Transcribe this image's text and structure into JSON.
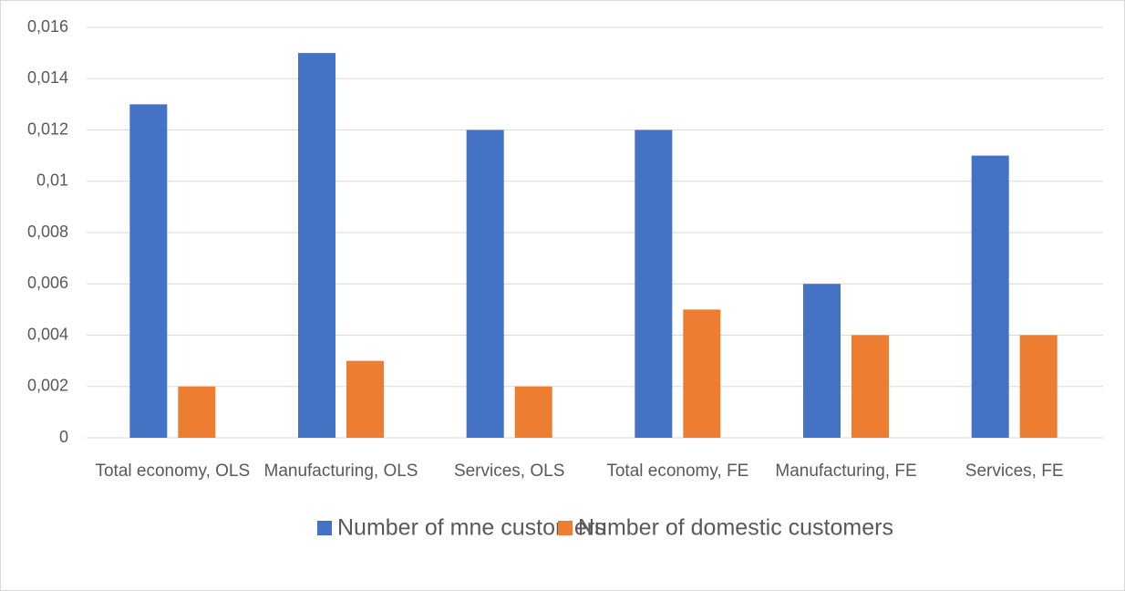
{
  "chart_data": {
    "type": "bar",
    "categories": [
      "Total economy, OLS",
      "Manufacturing, OLS",
      "Services, OLS",
      "Total economy, FE",
      "Manufacturing, FE",
      "Services, FE"
    ],
    "series": [
      {
        "name": "Number of mne customers",
        "color": "#4472c4",
        "values": [
          0.013,
          0.015,
          0.012,
          0.012,
          0.006,
          0.011
        ]
      },
      {
        "name": "Number of domestic customers",
        "color": "#ed7d31",
        "values": [
          0.002,
          0.003,
          0.002,
          0.005,
          0.004,
          0.004
        ]
      }
    ],
    "ylim": [
      0,
      0.016
    ],
    "yticks": [
      0,
      {
        "value": 0.002,
        "label": "0,002"
      },
      {
        "value": 0.004,
        "label": "0,004"
      },
      {
        "value": 0.006,
        "label": "0,006"
      },
      {
        "value": 0.008,
        "label": "0,008"
      },
      {
        "value": 0.01,
        "label": "0,01"
      },
      {
        "value": 0.012,
        "label": "0,012"
      },
      {
        "value": 0.014,
        "label": "0,014"
      },
      {
        "value": 0.016,
        "label": "0,016"
      }
    ],
    "grid": true,
    "legend": "bottom"
  }
}
